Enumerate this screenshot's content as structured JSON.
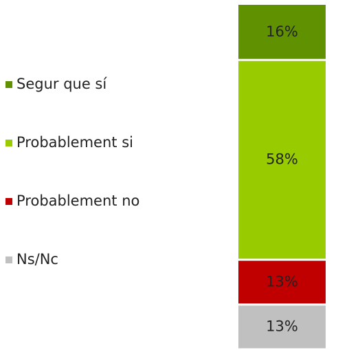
{
  "chart_data": {
    "type": "bar",
    "stacked": true,
    "categories": [
      null
    ],
    "series": [
      {
        "name": "Segur que sí",
        "color": "#5f9100",
        "values": [
          16
        ],
        "value_labels": [
          "16%"
        ]
      },
      {
        "name": "Probablement si",
        "color": "#99cc00",
        "values": [
          58
        ],
        "value_labels": [
          "58%"
        ]
      },
      {
        "name": "Probablement no",
        "color": "#c00000",
        "values": [
          13
        ],
        "value_labels": [
          "13%"
        ]
      },
      {
        "name": "Ns/Nc",
        "color": "#c0c0c0",
        "values": [
          13
        ],
        "value_labels": [
          "13%"
        ]
      }
    ],
    "legend": "left"
  }
}
